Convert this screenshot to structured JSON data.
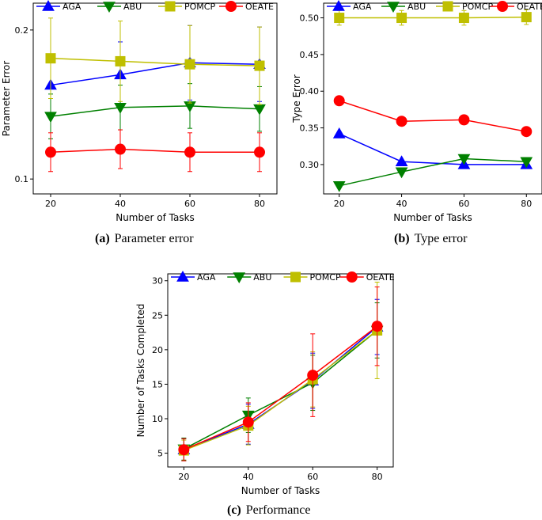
{
  "chart_data": [
    {
      "type": "line",
      "subfigure": "(a)",
      "caption": "Parameter error",
      "xlabel": "Number of Tasks",
      "ylabel": "Parameter Error",
      "x": [
        20,
        40,
        60,
        80
      ],
      "xticks": [
        "20",
        "40",
        "60",
        "80"
      ],
      "yticks": [
        0.1,
        0.2
      ],
      "ytick_labels": [
        "0.1",
        "0.2"
      ],
      "xlim": [
        15,
        85
      ],
      "ylim": [
        0.09,
        0.218
      ],
      "legend": "top",
      "series": [
        {
          "name": "AGA",
          "color": "#0000ff",
          "marker": "triangle-up",
          "values": [
            0.163,
            0.17,
            0.178,
            0.177
          ],
          "err": [
            0.02,
            0.022,
            0.025,
            0.025
          ]
        },
        {
          "name": "ABU",
          "color": "#008000",
          "marker": "triangle-down",
          "values": [
            0.142,
            0.148,
            0.149,
            0.147
          ],
          "err": [
            0.015,
            0.015,
            0.015,
            0.015
          ]
        },
        {
          "name": "POMCP",
          "color": "#bfbf00",
          "marker": "square",
          "values": [
            0.181,
            0.179,
            0.177,
            0.176
          ],
          "err": [
            0.027,
            0.027,
            0.026,
            0.026
          ]
        },
        {
          "name": "OEATE",
          "color": "#ff0000",
          "marker": "circle",
          "values": [
            0.118,
            0.12,
            0.118,
            0.118
          ],
          "err": [
            0.013,
            0.013,
            0.013,
            0.013
          ]
        }
      ]
    },
    {
      "type": "line",
      "subfigure": "(b)",
      "caption": "Type error",
      "xlabel": "Number of Tasks",
      "ylabel": "Type Error",
      "x": [
        20,
        40,
        60,
        80
      ],
      "xticks": [
        "20",
        "40",
        "60",
        "80"
      ],
      "yticks": [
        0.3,
        0.35,
        0.4,
        0.45,
        0.5
      ],
      "ytick_labels": [
        "0.30",
        "0.35",
        "0.40",
        "0.45",
        "0.50"
      ],
      "xlim": [
        15,
        85
      ],
      "ylim": [
        0.26,
        0.52
      ],
      "legend": "top",
      "series": [
        {
          "name": "AGA",
          "color": "#0000ff",
          "marker": "triangle-up",
          "values": [
            0.342,
            0.304,
            0.3,
            0.3
          ],
          "err": [
            0,
            0,
            0,
            0
          ]
        },
        {
          "name": "ABU",
          "color": "#008000",
          "marker": "triangle-down",
          "values": [
            0.271,
            0.29,
            0.308,
            0.304
          ],
          "err": [
            0,
            0,
            0,
            0
          ]
        },
        {
          "name": "POMCP",
          "color": "#bfbf00",
          "marker": "square",
          "values": [
            0.5,
            0.5,
            0.5,
            0.501
          ],
          "err": [
            0.01,
            0.01,
            0.01,
            0.01
          ]
        },
        {
          "name": "OEATE",
          "color": "#ff0000",
          "marker": "circle",
          "values": [
            0.387,
            0.359,
            0.361,
            0.345
          ],
          "err": [
            0,
            0,
            0,
            0
          ]
        }
      ]
    },
    {
      "type": "line",
      "subfigure": "(c)",
      "caption": "Performance",
      "xlabel": "Number of Tasks",
      "ylabel": "Number of Tasks Completed",
      "x": [
        20,
        40,
        60,
        80
      ],
      "xticks": [
        "20",
        "40",
        "60",
        "80"
      ],
      "yticks": [
        5,
        10,
        15,
        20,
        25,
        30
      ],
      "ytick_labels": [
        "5",
        "10",
        "15",
        "20",
        "25",
        "30"
      ],
      "xlim": [
        15,
        85
      ],
      "ylim": [
        3,
        31
      ],
      "legend": "top",
      "series": [
        {
          "name": "AGA",
          "color": "#0000ff",
          "marker": "triangle-up",
          "values": [
            5.5,
            9.2,
            15.5,
            23.3
          ],
          "err": [
            1.6,
            2.9,
            4,
            4
          ]
        },
        {
          "name": "ABU",
          "color": "#008000",
          "marker": "triangle-down",
          "values": [
            5.6,
            10.5,
            15.2,
            22.8
          ],
          "err": [
            1.6,
            2.5,
            4,
            4
          ]
        },
        {
          "name": "POMCP",
          "color": "#bfbf00",
          "marker": "square",
          "values": [
            5.4,
            9.0,
            15.7,
            22.8
          ],
          "err": [
            1.5,
            2.8,
            4,
            7
          ]
        },
        {
          "name": "OEATE",
          "color": "#ff0000",
          "marker": "circle",
          "values": [
            5.5,
            9.5,
            16.3,
            23.4
          ],
          "err": [
            1.6,
            2.8,
            6,
            5.7
          ]
        }
      ]
    }
  ]
}
